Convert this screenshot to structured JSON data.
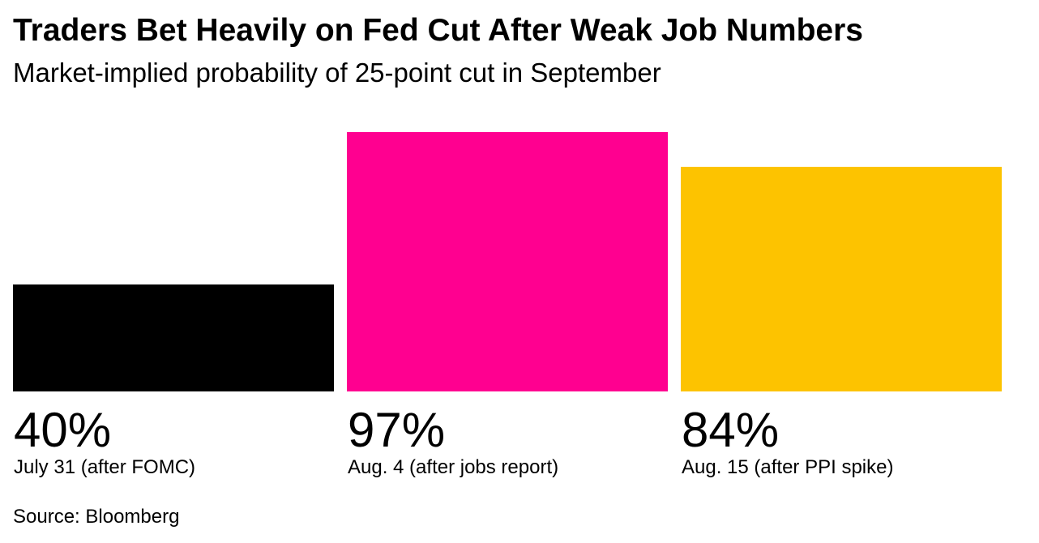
{
  "chart_data": {
    "type": "bar",
    "title": "Traders Bet Heavily on Fed Cut After Weak Job Numbers",
    "subtitle": "Market-implied probability of 25-point cut in September",
    "categories": [
      "July 31 (after FOMC)",
      "Aug. 4 (after jobs report)",
      "Aug. 15 (after PPI spike)"
    ],
    "values": [
      40,
      97,
      84
    ],
    "value_labels": [
      "40%",
      "97%",
      "84%"
    ],
    "colors": [
      "#000000",
      "#ff0090",
      "#fdc300"
    ],
    "unit": "%",
    "ylim": [
      0,
      100
    ],
    "grid": false,
    "source": "Source: Bloomberg"
  }
}
